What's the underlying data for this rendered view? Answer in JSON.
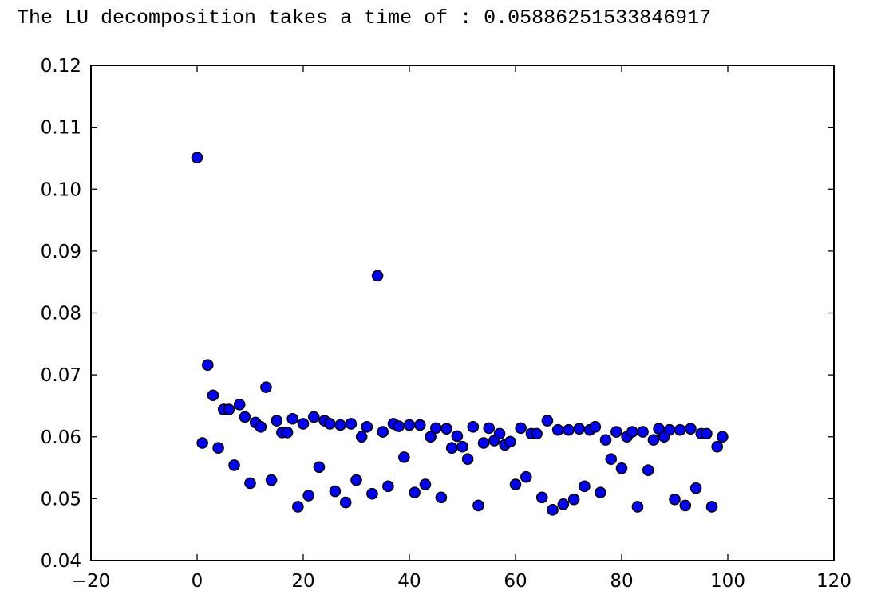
{
  "output": {
    "text": "The LU decomposition takes a time of : 0.05886251533846917"
  },
  "chart_data": {
    "type": "scatter",
    "title": "",
    "xlabel": "",
    "ylabel": "",
    "xlim": [
      -20,
      120
    ],
    "ylim": [
      0.04,
      0.12
    ],
    "x_ticks": [
      -20,
      0,
      20,
      40,
      60,
      80,
      100,
      120
    ],
    "x_tick_labels": [
      "−20",
      "0",
      "20",
      "40",
      "60",
      "80",
      "100",
      "120"
    ],
    "y_ticks": [
      0.04,
      0.05,
      0.06,
      0.07,
      0.08,
      0.09,
      0.1,
      0.11,
      0.12
    ],
    "y_tick_labels": [
      "0.04",
      "0.05",
      "0.06",
      "0.07",
      "0.08",
      "0.09",
      "0.10",
      "0.11",
      "0.12"
    ],
    "grid": false,
    "marker_color": "#0000ff",
    "marker_edge_color": "#000000",
    "series": [
      {
        "x": [
          0,
          1,
          2,
          3,
          4,
          5,
          6,
          7,
          8,
          9,
          10,
          11,
          12,
          13,
          14,
          15,
          16,
          17,
          18,
          19,
          20,
          21,
          22,
          23,
          24,
          25,
          26,
          27,
          28,
          29,
          30,
          31,
          32,
          33,
          34,
          35,
          36,
          37,
          38,
          39,
          40,
          41,
          42,
          43,
          44,
          45,
          46,
          47,
          48,
          49,
          50,
          51,
          52,
          53,
          54,
          55,
          56,
          57,
          58,
          59,
          60,
          61,
          62,
          63,
          64,
          65,
          66,
          67,
          68,
          69,
          70,
          71,
          72,
          73,
          74,
          75,
          76,
          77,
          78,
          79,
          80,
          81,
          82,
          83,
          84,
          85,
          86,
          87,
          88,
          89,
          90,
          91,
          92,
          93,
          94,
          95,
          96,
          97,
          98,
          99
        ],
        "y": [
          0.1051,
          0.059,
          0.0716,
          0.0667,
          0.0582,
          0.0644,
          0.0644,
          0.0554,
          0.0652,
          0.0632,
          0.0525,
          0.0623,
          0.0616,
          0.068,
          0.053,
          0.0626,
          0.0607,
          0.0607,
          0.0629,
          0.0487,
          0.0621,
          0.0505,
          0.0632,
          0.0551,
          0.0626,
          0.0621,
          0.0512,
          0.0619,
          0.0494,
          0.0621,
          0.053,
          0.06,
          0.0616,
          0.0508,
          0.086,
          0.0608,
          0.052,
          0.0621,
          0.0617,
          0.0567,
          0.0619,
          0.051,
          0.0619,
          0.0523,
          0.06,
          0.0614,
          0.0502,
          0.0613,
          0.0582,
          0.0601,
          0.0584,
          0.0564,
          0.0616,
          0.0489,
          0.059,
          0.0614,
          0.0594,
          0.0605,
          0.0587,
          0.0592,
          0.0523,
          0.0614,
          0.0535,
          0.0605,
          0.0605,
          0.0502,
          0.0626,
          0.0482,
          0.0611,
          0.0491,
          0.0611,
          0.0499,
          0.0613,
          0.052,
          0.0611,
          0.0616,
          0.051,
          0.0595,
          0.0564,
          0.0608,
          0.0549,
          0.06,
          0.0608,
          0.0487,
          0.0608,
          0.0546,
          0.0595,
          0.0613,
          0.06,
          0.0611,
          0.0499,
          0.0611,
          0.0489,
          0.0613,
          0.0517,
          0.0605,
          0.0605,
          0.0487,
          0.0584,
          0.06
        ]
      }
    ]
  }
}
